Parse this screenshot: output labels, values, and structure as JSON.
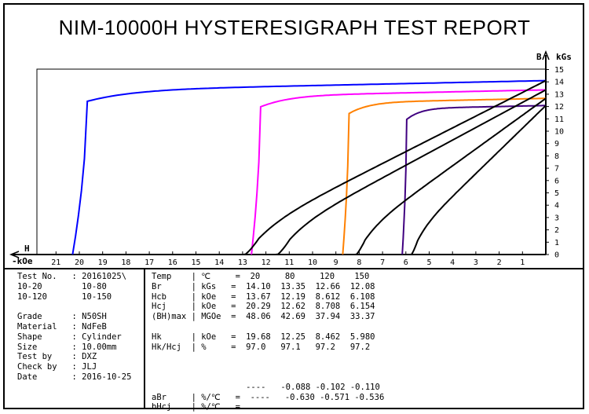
{
  "title": "NIM-10000H HYSTERESIGRAPH TEST REPORT",
  "chart_data": {
    "type": "line",
    "xlabel": "H",
    "xunit": "-kOe",
    "ylabel": "B",
    "yunit": "kGs",
    "xlim": [
      0,
      22
    ],
    "ylim": [
      0,
      15
    ],
    "xticks": [
      21,
      20,
      19,
      18,
      17,
      16,
      15,
      14,
      13,
      12,
      11,
      10,
      9,
      8,
      7,
      6,
      5,
      4,
      3,
      2,
      1
    ],
    "yticks": [
      0,
      1,
      2,
      3,
      4,
      5,
      6,
      7,
      8,
      9,
      10,
      11,
      12,
      13,
      14,
      15
    ],
    "series": [
      {
        "color": "#0000ff",
        "Br": 14.1,
        "Hcb": 13.67,
        "Hcj": 20.29,
        "temp": 20
      },
      {
        "color": "#ff00ff",
        "Br": 13.35,
        "Hcb": 12.19,
        "Hcj": 12.62,
        "temp": 80
      },
      {
        "color": "#ff8000",
        "Br": 12.66,
        "Hcb": 8.612,
        "Hcj": 8.708,
        "temp": 120
      },
      {
        "color": "#400080",
        "Br": 12.08,
        "Hcb": 6.108,
        "Hcj": 6.154,
        "temp": 150
      }
    ]
  },
  "info": {
    "test_no_label": "Test No.",
    "test_no_value": ": 20161025\\",
    "rows_extra": [
      {
        "a": "10-20",
        "b": "10-80"
      },
      {
        "a": "10-120",
        "b": "10-150"
      }
    ],
    "fields": [
      {
        "label": "Grade",
        "value": ": N50SH"
      },
      {
        "label": "Material",
        "value": ": NdFeB"
      },
      {
        "label": "Shape",
        "value": ": Cylinder"
      },
      {
        "label": "Size",
        "value": ": 10.00mm"
      },
      {
        "label": "Test by",
        "value": ": DXZ"
      },
      {
        "label": "Check by",
        "value": ": JLJ"
      },
      {
        "label": "Date",
        "value": ": 2016-10-25"
      }
    ]
  },
  "results": {
    "rows": [
      {
        "name": "Temp",
        "unit": "| ℃",
        "eq": "=",
        "vals": [
          "20",
          "80",
          "120",
          "150"
        ]
      },
      {
        "name": "Br",
        "unit": "| kGs",
        "eq": "=",
        "vals": [
          "14.10",
          "13.35",
          "12.66",
          "12.08"
        ]
      },
      {
        "name": "Hcb",
        "unit": "| kOe",
        "eq": "=",
        "vals": [
          "13.67",
          "12.19",
          "8.612",
          "6.108"
        ]
      },
      {
        "name": "Hcj",
        "unit": "| kOe",
        "eq": "=",
        "vals": [
          "20.29",
          "12.62",
          "8.708",
          "6.154"
        ]
      },
      {
        "name": "(BH)max",
        "unit": "| MGOe",
        "eq": "=",
        "vals": [
          "48.06",
          "42.69",
          "37.94",
          "33.37"
        ]
      },
      {
        "name": "",
        "unit": "",
        "eq": "",
        "vals": [
          "",
          "",
          "",
          ""
        ]
      },
      {
        "name": "Hk",
        "unit": "| kOe",
        "eq": "=",
        "vals": [
          "19.68",
          "12.25",
          "8.462",
          "5.980"
        ]
      },
      {
        "name": "Hk/Hcj",
        "unit": "| %",
        "eq": "=",
        "vals": [
          "97.0",
          "97.1",
          "97.2",
          "97.2"
        ]
      }
    ],
    "coeff_rows": [
      {
        "name": "",
        "unit": "",
        "eq": "",
        "vals": [
          "----",
          "-0.088",
          "-0.102",
          "-0.110"
        ]
      },
      {
        "name": "aBr",
        "unit": "| %/℃",
        "eq": "=",
        "vals": [
          "----",
          "-0.630",
          "-0.571",
          "-0.536"
        ]
      },
      {
        "name": "bHcj",
        "unit": "| %/℃",
        "eq": "=",
        "vals": [
          "",
          "",
          "",
          ""
        ]
      }
    ]
  }
}
